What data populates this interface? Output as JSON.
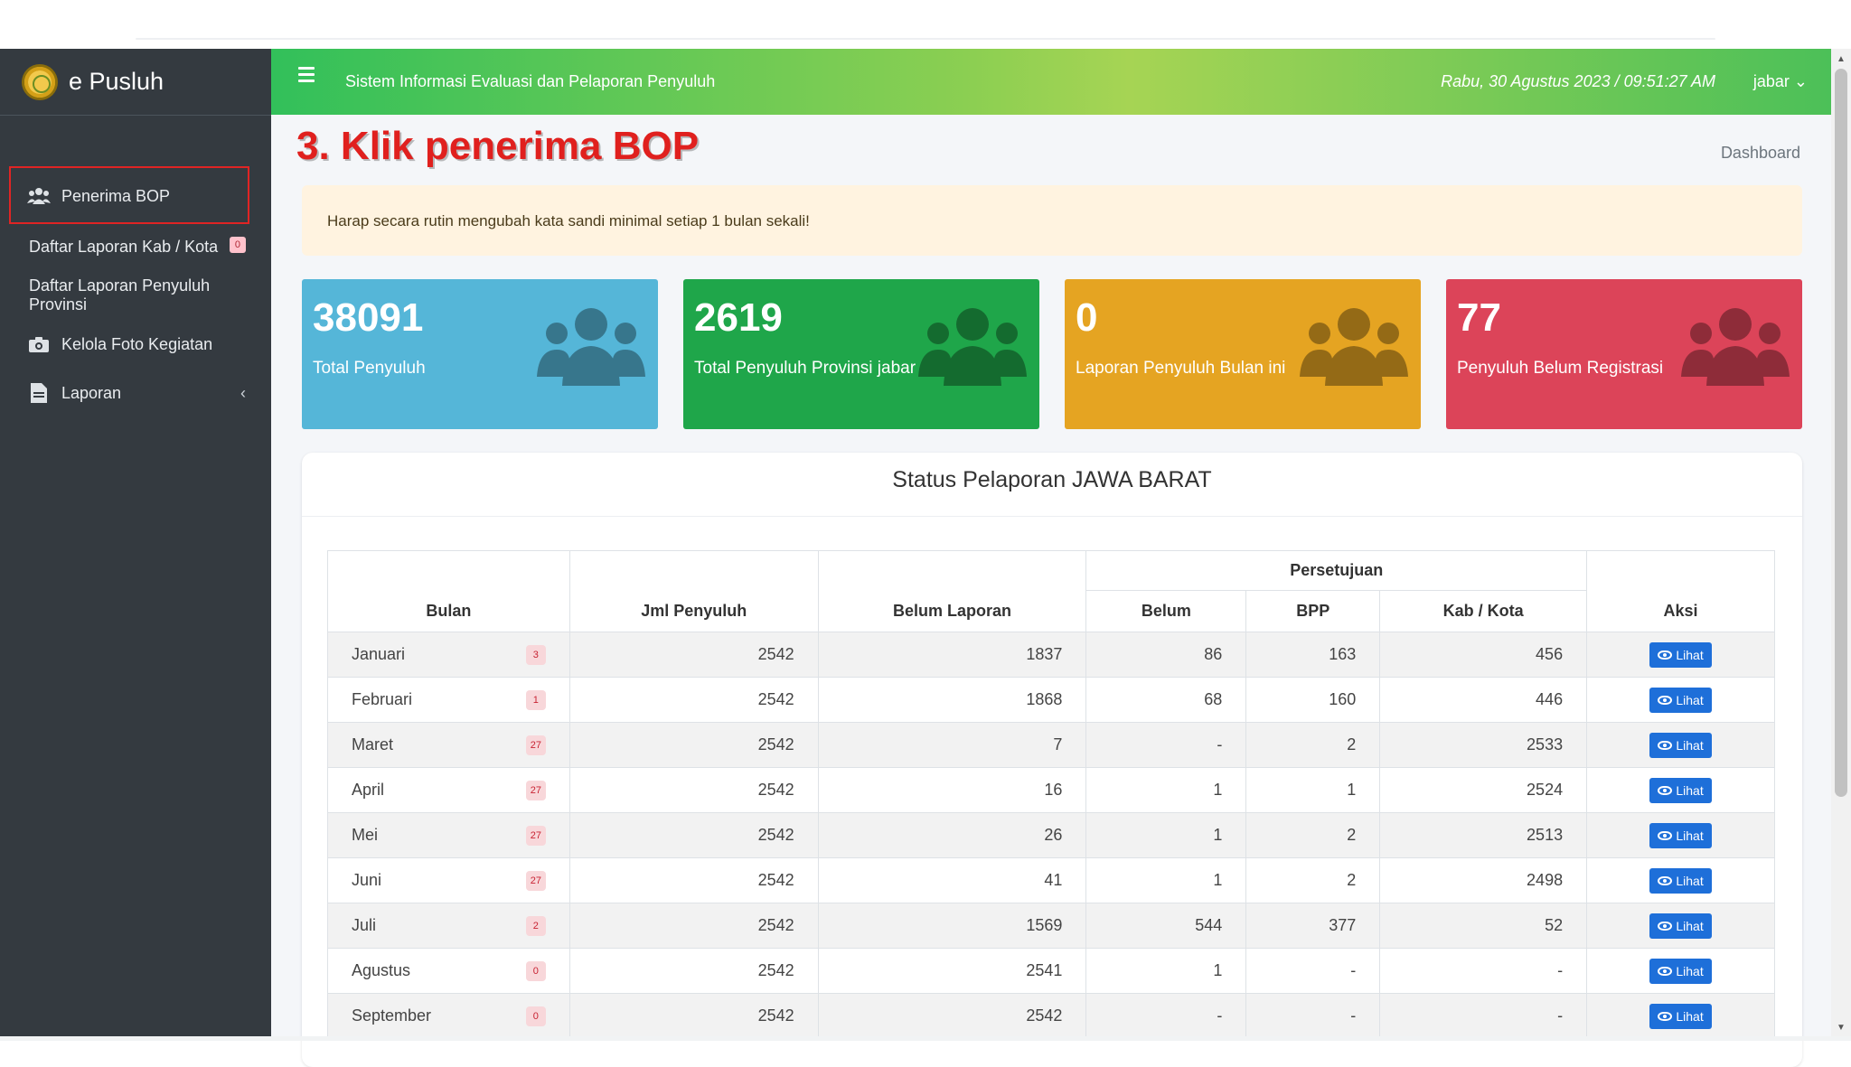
{
  "brand": {
    "name": "e Pusluh",
    "logo": "ministry-seal-logo"
  },
  "sidebar": {
    "items": [
      {
        "label": "Penerima BOP",
        "icon": "users-icon"
      },
      {
        "label": "Daftar Laporan Kab / Kota",
        "badge": "0"
      },
      {
        "label": "Daftar Laporan Penyuluh Provinsi"
      },
      {
        "label": "Kelola Foto Kegiatan",
        "icon": "camera-icon"
      },
      {
        "label": "Laporan",
        "icon": "file-icon",
        "caret": "‹"
      }
    ]
  },
  "topbar": {
    "title": "Sistem Informasi Evaluasi dan Pelaporan Penyuluh",
    "datetime": "Rabu, 30 Agustus 2023 / 09:51:27 AM",
    "user": "jabar",
    "user_caret": "⌄"
  },
  "annotation": "3. Klik penerima BOP",
  "breadcrumb": "Dashboard",
  "alert": "Harap secara rutin mengubah kata sandi minimal setiap 1 bulan sekali!",
  "cards": [
    {
      "value": "38091",
      "label": "Total Penyuluh",
      "color": "#55b6d8"
    },
    {
      "value": "2619",
      "label": "Total Penyuluh Provinsi jabar",
      "color": "#1fa64a"
    },
    {
      "value": "0",
      "label": "Laporan Penyuluh Bulan ini",
      "color": "#e5a422"
    },
    {
      "value": "77",
      "label": "Penyuluh Belum Registrasi",
      "color": "#dc4459"
    }
  ],
  "panel": {
    "title": "Status Pelaporan JAWA BARAT",
    "headers": {
      "bulan": "Bulan",
      "jml": "Jml Penyuluh",
      "belum_laporan": "Belum Laporan",
      "persetujuan": "Persetujuan",
      "belum": "Belum",
      "bpp": "BPP",
      "kab": "Kab / Kota",
      "aksi": "Aksi"
    },
    "button_label": "Lihat",
    "rows": [
      {
        "bulan": "Januari",
        "badge": "3",
        "jml": "2542",
        "belum_laporan": "1837",
        "belum": "86",
        "bpp": "163",
        "kab": "456"
      },
      {
        "bulan": "Februari",
        "badge": "1",
        "jml": "2542",
        "belum_laporan": "1868",
        "belum": "68",
        "bpp": "160",
        "kab": "446"
      },
      {
        "bulan": "Maret",
        "badge": "27",
        "jml": "2542",
        "belum_laporan": "7",
        "belum": "-",
        "bpp": "2",
        "kab": "2533"
      },
      {
        "bulan": "April",
        "badge": "27",
        "jml": "2542",
        "belum_laporan": "16",
        "belum": "1",
        "bpp": "1",
        "kab": "2524"
      },
      {
        "bulan": "Mei",
        "badge": "27",
        "jml": "2542",
        "belum_laporan": "26",
        "belum": "1",
        "bpp": "2",
        "kab": "2513"
      },
      {
        "bulan": "Juni",
        "badge": "27",
        "jml": "2542",
        "belum_laporan": "41",
        "belum": "1",
        "bpp": "2",
        "kab": "2498"
      },
      {
        "bulan": "Juli",
        "badge": "2",
        "jml": "2542",
        "belum_laporan": "1569",
        "belum": "544",
        "bpp": "377",
        "kab": "52"
      },
      {
        "bulan": "Agustus",
        "badge": "0",
        "jml": "2542",
        "belum_laporan": "2541",
        "belum": "1",
        "bpp": "-",
        "kab": "-"
      },
      {
        "bulan": "September",
        "badge": "0",
        "jml": "2542",
        "belum_laporan": "2542",
        "belum": "-",
        "bpp": "-",
        "kab": "-"
      }
    ]
  },
  "scrollbar": {
    "up": "▲",
    "down": "▼"
  }
}
